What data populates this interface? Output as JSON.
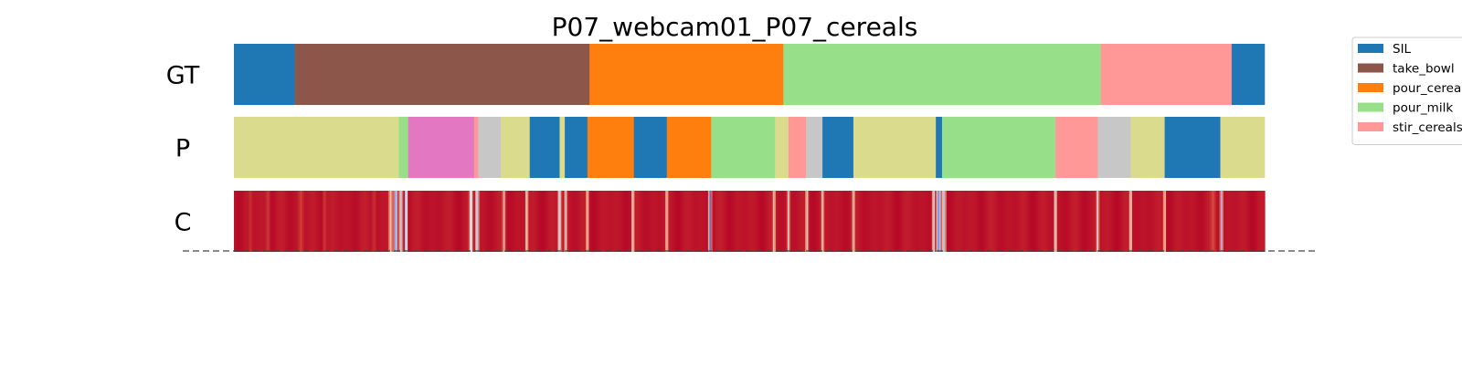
{
  "chart_data": {
    "type": "heatmap",
    "title": "P07_webcam01_P07_cereals",
    "x_range": [
      0,
      1000
    ],
    "rows": [
      {
        "label": "GT",
        "kind": "segments",
        "segments": [
          {
            "start": 0,
            "end": 59,
            "label": "SIL"
          },
          {
            "start": 59,
            "end": 345,
            "label": "take_bowl"
          },
          {
            "start": 345,
            "end": 533,
            "label": "pour_cereals"
          },
          {
            "start": 533,
            "end": 841,
            "label": "pour_milk"
          },
          {
            "start": 841,
            "end": 968,
            "label": "stir_cereals"
          },
          {
            "start": 968,
            "end": 1000,
            "label": "SIL"
          }
        ]
      },
      {
        "label": "P",
        "kind": "segments",
        "segments": [
          {
            "start": 0,
            "end": 160,
            "label": "other_olive"
          },
          {
            "start": 160,
            "end": 169,
            "label": "pour_milk"
          },
          {
            "start": 169,
            "end": 233,
            "label": "other_pink"
          },
          {
            "start": 233,
            "end": 237,
            "label": "stir_cereals"
          },
          {
            "start": 237,
            "end": 259,
            "label": "other_gray"
          },
          {
            "start": 259,
            "end": 287,
            "label": "other_olive"
          },
          {
            "start": 287,
            "end": 316,
            "label": "SIL"
          },
          {
            "start": 316,
            "end": 321,
            "label": "other_olive"
          },
          {
            "start": 321,
            "end": 343,
            "label": "SIL"
          },
          {
            "start": 343,
            "end": 388,
            "label": "pour_cereals"
          },
          {
            "start": 388,
            "end": 420,
            "label": "SIL"
          },
          {
            "start": 420,
            "end": 463,
            "label": "pour_cereals"
          },
          {
            "start": 463,
            "end": 525,
            "label": "pour_milk"
          },
          {
            "start": 525,
            "end": 538,
            "label": "other_olive"
          },
          {
            "start": 538,
            "end": 555,
            "label": "stir_cereals"
          },
          {
            "start": 555,
            "end": 571,
            "label": "other_gray"
          },
          {
            "start": 571,
            "end": 601,
            "label": "SIL"
          },
          {
            "start": 601,
            "end": 681,
            "label": "other_olive"
          },
          {
            "start": 681,
            "end": 687,
            "label": "SIL"
          },
          {
            "start": 687,
            "end": 797,
            "label": "pour_milk"
          },
          {
            "start": 797,
            "end": 838,
            "label": "stir_cereals"
          },
          {
            "start": 838,
            "end": 870,
            "label": "other_gray"
          },
          {
            "start": 870,
            "end": 903,
            "label": "other_olive"
          },
          {
            "start": 903,
            "end": 957,
            "label": "SIL"
          },
          {
            "start": 957,
            "end": 1000,
            "label": "other_olive"
          }
        ]
      },
      {
        "label": "C",
        "kind": "confidence",
        "base_value": 0.95,
        "dips": [
          {
            "pos": 16,
            "width": 2,
            "value": 0.85
          },
          {
            "pos": 33,
            "width": 3,
            "value": 0.82
          },
          {
            "pos": 65,
            "width": 4,
            "value": 0.83
          },
          {
            "pos": 88,
            "width": 3,
            "value": 0.84
          },
          {
            "pos": 136,
            "width": 3,
            "value": 0.85
          },
          {
            "pos": 152,
            "width": 3,
            "value": 0.55
          },
          {
            "pos": 157,
            "width": 2.5,
            "value": 0.1
          },
          {
            "pos": 162,
            "width": 2.5,
            "value": 0.4
          },
          {
            "pos": 167,
            "width": 2,
            "value": 0.15
          },
          {
            "pos": 230,
            "width": 2.5,
            "value": 0.3
          },
          {
            "pos": 236,
            "width": 2.5,
            "value": 0.3
          },
          {
            "pos": 262,
            "width": 2,
            "value": 0.55
          },
          {
            "pos": 284,
            "width": 2,
            "value": 0.45
          },
          {
            "pos": 316,
            "width": 2.5,
            "value": 0.35
          },
          {
            "pos": 322,
            "width": 2,
            "value": 0.45
          },
          {
            "pos": 343,
            "width": 2,
            "value": 0.5
          },
          {
            "pos": 387,
            "width": 2,
            "value": 0.45
          },
          {
            "pos": 420,
            "width": 2,
            "value": 0.5
          },
          {
            "pos": 462,
            "width": 2,
            "value": 0.05
          },
          {
            "pos": 524,
            "width": 2,
            "value": 0.5
          },
          {
            "pos": 538,
            "width": 2,
            "value": 0.5
          },
          {
            "pos": 556,
            "width": 2,
            "value": 0.45
          },
          {
            "pos": 571,
            "width": 2,
            "value": 0.5
          },
          {
            "pos": 601,
            "width": 2,
            "value": 0.5
          },
          {
            "pos": 679,
            "width": 2,
            "value": 0.35
          },
          {
            "pos": 684,
            "width": 3,
            "value": 0.1
          },
          {
            "pos": 689,
            "width": 2.5,
            "value": 0.3
          },
          {
            "pos": 797,
            "width": 2,
            "value": 0.4
          },
          {
            "pos": 838,
            "width": 2,
            "value": 0.45
          },
          {
            "pos": 870,
            "width": 2,
            "value": 0.45
          },
          {
            "pos": 903,
            "width": 2,
            "value": 0.5
          },
          {
            "pos": 958,
            "width": 2,
            "value": 0.3
          },
          {
            "pos": 950,
            "width": 4,
            "value": 0.8
          }
        ]
      }
    ],
    "legend": {
      "position": "upper-right",
      "entries": [
        {
          "label": "SIL",
          "color": "#1f77b4"
        },
        {
          "label": "take_bowl",
          "color": "#8c564b"
        },
        {
          "label": "pour_cereals",
          "color": "#ff7f0e"
        },
        {
          "label": "pour_milk",
          "color": "#98df8a"
        },
        {
          "label": "stir_cereals",
          "color": "#ff9896"
        }
      ]
    },
    "colors": {
      "SIL": "#1f77b4",
      "take_bowl": "#8c564b",
      "pour_cereals": "#ff7f0e",
      "pour_milk": "#98df8a",
      "stir_cereals": "#ff9896",
      "other_olive": "#dbdb8d",
      "other_pink": "#e377c2",
      "other_gray": "#c7c7c7"
    },
    "grid": false,
    "dashed_baseline": true
  }
}
